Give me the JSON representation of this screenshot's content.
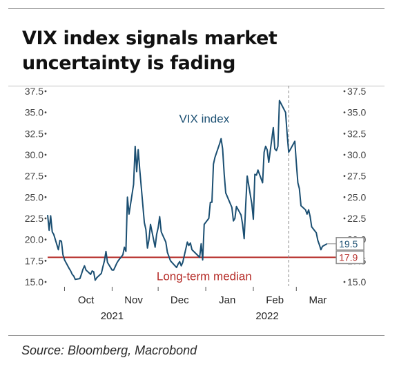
{
  "title": "VIX index signals market uncertainty is fading",
  "source": "Source: Bloomberg, Macrobond",
  "colors": {
    "series": "#1b4f72",
    "median": "#b52b27",
    "tick": "#444444",
    "badge_border": "#8c8c8c"
  },
  "chart_data": {
    "type": "line",
    "title": "VIX index signals market uncertainty is fading",
    "xlabel": "",
    "ylabel": "",
    "ylim": [
      15.0,
      37.5
    ],
    "yticks": [
      "15.0",
      "17.5",
      "20.0",
      "22.5",
      "25.0",
      "27.5",
      "30.0",
      "32.5",
      "35.0",
      "37.5"
    ],
    "grid": false,
    "xlim": [
      "2021-09-20",
      "2022-03-31"
    ],
    "x_month_labels": [
      {
        "date": "2021-10-01",
        "label": "Oct"
      },
      {
        "date": "2021-11-01",
        "label": "Nov"
      },
      {
        "date": "2021-12-01",
        "label": "Dec"
      },
      {
        "date": "2022-01-01",
        "label": "Jan"
      },
      {
        "date": "2022-02-01",
        "label": "Feb"
      },
      {
        "date": "2022-03-01",
        "label": "Mar"
      }
    ],
    "x_year_labels": [
      {
        "date": "2021-11-01",
        "label": "2021"
      },
      {
        "date": "2022-02-10",
        "label": "2022"
      }
    ],
    "series": [
      {
        "name": "VIX index",
        "points": [
          [
            "2021-09-20",
            22.9
          ],
          [
            "2021-09-21",
            21.1
          ],
          [
            "2021-09-22",
            22.8
          ],
          [
            "2021-09-23",
            20.9
          ],
          [
            "2021-09-24",
            20.6
          ],
          [
            "2021-09-27",
            18.8
          ],
          [
            "2021-09-28",
            19.9
          ],
          [
            "2021-09-29",
            19.8
          ],
          [
            "2021-09-30",
            18.2
          ],
          [
            "2021-10-01",
            17.6
          ],
          [
            "2021-10-04",
            16.6
          ],
          [
            "2021-10-05",
            16.3
          ],
          [
            "2021-10-06",
            15.9
          ],
          [
            "2021-10-07",
            15.7
          ],
          [
            "2021-10-08",
            15.3
          ],
          [
            "2021-10-11",
            15.4
          ],
          [
            "2021-10-12",
            15.9
          ],
          [
            "2021-10-13",
            16.5
          ],
          [
            "2021-10-14",
            16.9
          ],
          [
            "2021-10-15",
            16.4
          ],
          [
            "2021-10-18",
            15.9
          ],
          [
            "2021-10-19",
            16.3
          ],
          [
            "2021-10-20",
            16.2
          ],
          [
            "2021-10-21",
            15.2
          ],
          [
            "2021-10-22",
            15.5
          ],
          [
            "2021-10-25",
            16.0
          ],
          [
            "2021-10-26",
            16.8
          ],
          [
            "2021-10-27",
            17.5
          ],
          [
            "2021-10-28",
            18.6
          ],
          [
            "2021-10-29",
            17.3
          ],
          [
            "2021-11-01",
            16.4
          ],
          [
            "2021-11-02",
            16.4
          ],
          [
            "2021-11-03",
            16.8
          ],
          [
            "2021-11-04",
            17.2
          ],
          [
            "2021-11-05",
            17.5
          ],
          [
            "2021-11-08",
            18.2
          ],
          [
            "2021-11-09",
            19.1
          ],
          [
            "2021-11-10",
            18.6
          ],
          [
            "2021-11-11",
            25.0
          ],
          [
            "2021-11-12",
            23.0
          ],
          [
            "2021-11-15",
            26.5
          ],
          [
            "2021-11-16",
            31.0
          ],
          [
            "2021-11-17",
            28.0
          ],
          [
            "2021-11-18",
            30.6
          ],
          [
            "2021-11-19",
            28.3
          ],
          [
            "2021-11-22",
            22.0
          ],
          [
            "2021-11-23",
            21.2
          ],
          [
            "2021-11-24",
            19.0
          ],
          [
            "2021-11-25",
            20.0
          ],
          [
            "2021-11-26",
            21.8
          ],
          [
            "2021-11-29",
            19.1
          ],
          [
            "2021-11-30",
            20.6
          ],
          [
            "2021-12-01",
            21.4
          ],
          [
            "2021-12-02",
            22.7
          ],
          [
            "2021-12-03",
            20.9
          ],
          [
            "2021-12-06",
            19.7
          ],
          [
            "2021-12-07",
            18.5
          ],
          [
            "2021-12-08",
            18.0
          ],
          [
            "2021-12-09",
            17.5
          ],
          [
            "2021-12-10",
            17.3
          ],
          [
            "2021-12-13",
            16.7
          ],
          [
            "2021-12-14",
            17.1
          ],
          [
            "2021-12-15",
            17.4
          ],
          [
            "2021-12-16",
            16.9
          ],
          [
            "2021-12-17",
            17.3
          ],
          [
            "2021-12-20",
            19.7
          ],
          [
            "2021-12-21",
            19.3
          ],
          [
            "2021-12-22",
            19.6
          ],
          [
            "2021-12-23",
            18.8
          ],
          [
            "2021-12-27",
            18.1
          ],
          [
            "2021-12-28",
            17.9
          ],
          [
            "2021-12-29",
            19.5
          ],
          [
            "2021-12-30",
            17.6
          ],
          [
            "2021-12-31",
            21.8
          ],
          [
            "2022-01-03",
            22.5
          ],
          [
            "2022-01-04",
            24.4
          ],
          [
            "2022-01-05",
            24.4
          ],
          [
            "2022-01-06",
            28.9
          ],
          [
            "2022-01-07",
            29.7
          ],
          [
            "2022-01-10",
            31.3
          ],
          [
            "2022-01-11",
            31.9
          ],
          [
            "2022-01-12",
            30.7
          ],
          [
            "2022-01-13",
            27.7
          ],
          [
            "2022-01-14",
            25.5
          ],
          [
            "2022-01-18",
            23.8
          ],
          [
            "2022-01-19",
            22.2
          ],
          [
            "2022-01-20",
            22.5
          ],
          [
            "2022-01-21",
            23.9
          ],
          [
            "2022-01-24",
            22.9
          ],
          [
            "2022-01-25",
            21.8
          ],
          [
            "2022-01-26",
            20.1
          ],
          [
            "2022-01-27",
            24.0
          ],
          [
            "2022-01-28",
            27.5
          ],
          [
            "2022-01-31",
            24.2
          ],
          [
            "2022-02-01",
            22.4
          ],
          [
            "2022-02-02",
            27.7
          ],
          [
            "2022-02-03",
            27.6
          ],
          [
            "2022-02-04",
            28.2
          ],
          [
            "2022-02-07",
            26.7
          ],
          [
            "2022-02-08",
            30.3
          ],
          [
            "2022-02-09",
            31.0
          ],
          [
            "2022-02-10",
            30.6
          ],
          [
            "2022-02-11",
            29.1
          ],
          [
            "2022-02-14",
            33.2
          ],
          [
            "2022-02-15",
            30.7
          ],
          [
            "2022-02-16",
            30.5
          ],
          [
            "2022-02-17",
            31.0
          ],
          [
            "2022-02-18",
            36.4
          ],
          [
            "2022-02-22",
            35.0
          ],
          [
            "2022-02-23",
            32.5
          ],
          [
            "2022-02-24",
            30.3
          ],
          [
            "2022-02-25",
            30.6
          ],
          [
            "2022-02-28",
            31.6
          ],
          [
            "2022-03-01",
            29.0
          ],
          [
            "2022-03-02",
            26.7
          ],
          [
            "2022-03-03",
            26.0
          ],
          [
            "2022-03-04",
            24.0
          ],
          [
            "2022-03-07",
            23.5
          ],
          [
            "2022-03-08",
            23.0
          ],
          [
            "2022-03-09",
            23.5
          ],
          [
            "2022-03-10",
            22.7
          ],
          [
            "2022-03-11",
            21.5
          ],
          [
            "2022-03-14",
            20.8
          ],
          [
            "2022-03-15",
            19.9
          ],
          [
            "2022-03-16",
            19.4
          ],
          [
            "2022-03-17",
            18.8
          ],
          [
            "2022-03-18",
            19.2
          ],
          [
            "2022-03-21",
            19.5
          ]
        ]
      }
    ],
    "annotations": [
      {
        "text": "VIX index",
        "date": "2021-12-31",
        "y": 33.8
      },
      {
        "text": "Long-term median",
        "date": "2021-12-31",
        "y": 15.2
      },
      {
        "text": "19.5",
        "date": "2022-03-27",
        "y": 19.5
      },
      {
        "text": "17.9",
        "date": "2022-03-27",
        "y": 17.9
      }
    ],
    "reference_lines": [
      {
        "orientation": "horizontal",
        "y": 17.9,
        "label": "Long-term median",
        "style": "solid"
      },
      {
        "orientation": "vertical",
        "date": "2022-02-24",
        "style": "dashed"
      }
    ]
  }
}
